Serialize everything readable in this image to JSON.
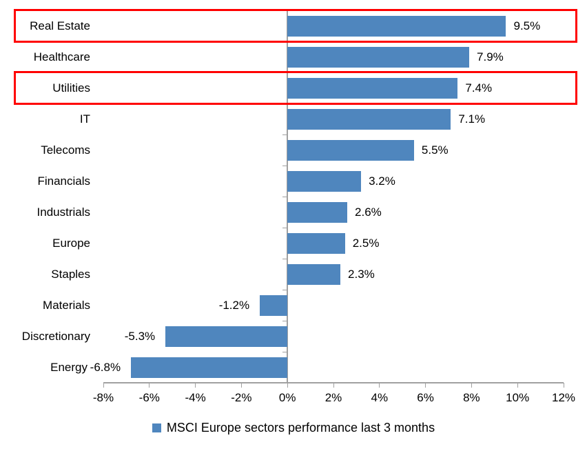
{
  "chart_data": {
    "type": "bar",
    "orientation": "horizontal",
    "title": "",
    "categories": [
      "Real Estate",
      "Healthcare",
      "Utilities",
      "IT",
      "Telecoms",
      "Financials",
      "Industrials",
      "Europe",
      "Staples",
      "Materials",
      "Discretionary",
      "Energy"
    ],
    "values": [
      9.5,
      7.9,
      7.4,
      7.1,
      5.5,
      3.2,
      2.6,
      2.5,
      2.3,
      -1.2,
      -5.3,
      -6.8
    ],
    "value_labels": [
      "9.5%",
      "7.9%",
      "7.4%",
      "7.1%",
      "5.5%",
      "3.2%",
      "2.6%",
      "2.5%",
      "2.3%",
      "-1.2%",
      "-5.3%",
      "-6.8%"
    ],
    "series_name": "MSCI Europe sectors performance last 3 months",
    "xlabel": "",
    "ylabel": "",
    "xlim": [
      -8,
      12
    ],
    "xtick_step": 2,
    "xtick_labels": [
      "-8%",
      "-6%",
      "-4%",
      "-2%",
      "0%",
      "2%",
      "4%",
      "6%",
      "8%",
      "10%",
      "12%"
    ],
    "grid": false,
    "legend_position": "bottom",
    "highlighted_categories": [
      "Real Estate",
      "Utilities"
    ],
    "colors": {
      "bar": "#4f86be",
      "highlight_box": "#ff0000",
      "axis": "#a0a0a0",
      "text": "#000000"
    }
  },
  "legend": {
    "label": "MSCI Europe sectors performance last 3 months"
  }
}
